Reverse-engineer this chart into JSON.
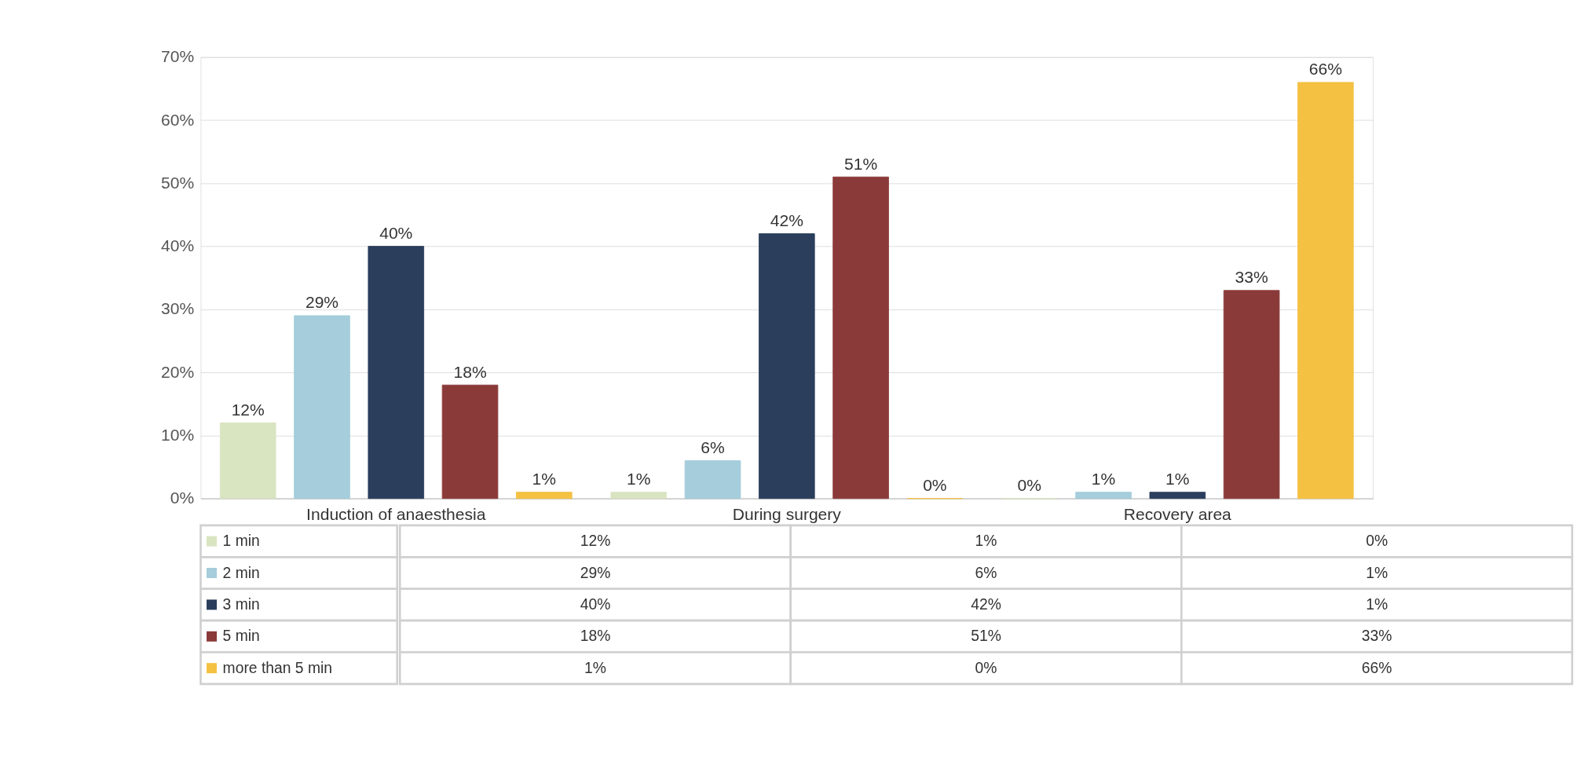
{
  "chart_data": {
    "type": "bar",
    "categories": [
      "Induction of anaesthesia",
      "During surgery",
      "Recovery area"
    ],
    "series": [
      {
        "name": "1 min",
        "color": "#d9e4c1",
        "values": [
          12,
          1,
          0
        ],
        "value_labels": [
          "12%",
          "1%",
          "0%"
        ]
      },
      {
        "name": "2 min",
        "color": "#a5cddb",
        "values": [
          29,
          6,
          1
        ],
        "value_labels": [
          "29%",
          "6%",
          "1%"
        ]
      },
      {
        "name": "3 min",
        "color": "#2b3e5c",
        "values": [
          40,
          42,
          1
        ],
        "value_labels": [
          "40%",
          "42%",
          "1%"
        ]
      },
      {
        "name": "5 min",
        "color": "#8b3a3a",
        "values": [
          18,
          51,
          33
        ],
        "value_labels": [
          "18%",
          "51%",
          "33%"
        ]
      },
      {
        "name": "more than 5 min",
        "color": "#f4c142",
        "values": [
          1,
          0,
          66
        ],
        "value_labels": [
          "1%",
          "0%",
          "66%"
        ]
      }
    ],
    "ylim": [
      0,
      70
    ],
    "yticks": [
      {
        "value": 0,
        "label": "0%"
      },
      {
        "value": 10,
        "label": "10%"
      },
      {
        "value": 20,
        "label": "20%"
      },
      {
        "value": 30,
        "label": "30%"
      },
      {
        "value": 40,
        "label": "40%"
      },
      {
        "value": 50,
        "label": "50%"
      },
      {
        "value": 60,
        "label": "60%"
      },
      {
        "value": 70,
        "label": "70%"
      }
    ],
    "grid": "y",
    "legend": "bottom"
  }
}
